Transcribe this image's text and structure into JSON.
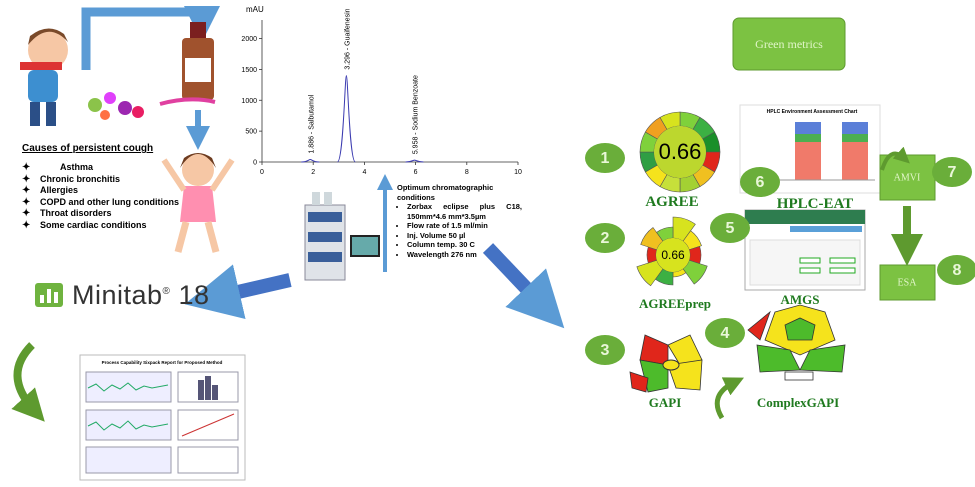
{
  "cough_story": {
    "title": "Causes of persistent cough",
    "causes": [
      "Asthma",
      "Chronic bronchitis",
      "Allergies",
      "COPD and other lung conditions",
      "Throat disorders",
      "Some cardiac conditions"
    ]
  },
  "chromatogram": {
    "y_unit": "mAU",
    "xlim": [
      0,
      10
    ],
    "ylim": [
      0,
      2300
    ],
    "xticks": [
      0,
      2,
      4,
      6,
      8,
      10
    ],
    "yticks": [
      0,
      500,
      1000,
      1500,
      2000
    ],
    "peaks": [
      {
        "label": "1.886 - Salbutamol",
        "time": 1.886,
        "height": 40
      },
      {
        "label": "3.296 - Guaifenesin",
        "time": 3.296,
        "height": 1400
      },
      {
        "label": "5.958 - Sodium Benzoate",
        "time": 5.958,
        "height": 30
      }
    ]
  },
  "conditions": {
    "title": "Optimum chromatographic conditions",
    "items": [
      "Zorbax eclipse plus C18, 150mm*4.6 mm*3.5µm",
      "Flow rate of 1.5 ml/min",
      "Inj. Volume 50 µl",
      "Column temp. 30 C",
      "Wavelength 276 nm"
    ]
  },
  "software": {
    "name": "Minitab",
    "version": "18"
  },
  "report_title": "Process Capability Sixpack Report for Proposed Method",
  "green_metrics": {
    "title": "Green metrics",
    "tools": [
      {
        "number": 1,
        "name": "AGREE",
        "score": 0.66
      },
      {
        "number": 2,
        "name": "AGREEprep",
        "score": 0.66
      },
      {
        "number": 3,
        "name": "GAPI"
      },
      {
        "number": 4,
        "name": "ComplexGAPI"
      },
      {
        "number": 5,
        "name": "AMGS"
      },
      {
        "number": 6,
        "name": "HPLC-EAT",
        "chart_title": "HPLC Environment Assessment Chart"
      },
      {
        "number": 7,
        "name": "AMVI"
      },
      {
        "number": 8,
        "name": "ESA"
      }
    ]
  }
}
